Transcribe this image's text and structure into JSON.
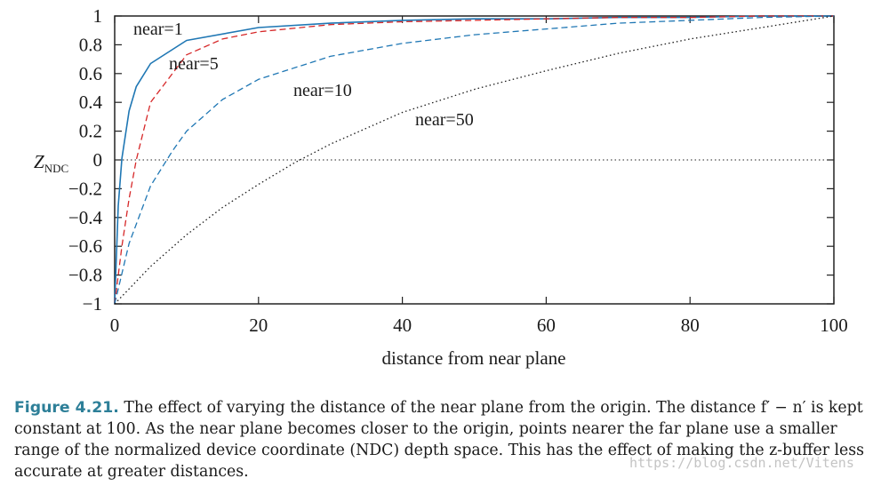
{
  "chart_data": {
    "type": "line",
    "title": "",
    "xlabel": "distance from near plane",
    "ylabel_main": "Z",
    "ylabel_sub": "NDC",
    "xlim": [
      0,
      100
    ],
    "ylim": [
      -1,
      1
    ],
    "x_ticks": [
      "0",
      "20",
      "40",
      "60",
      "80",
      "100"
    ],
    "y_ticks": [
      "1",
      "0.8",
      "0.6",
      "0.4",
      "0.2",
      "0",
      "−0.2",
      "−0.4",
      "−0.6",
      "−0.8",
      "−1"
    ],
    "zero_line": true,
    "far_minus_near": 100,
    "series": [
      {
        "name": "near=1",
        "near": 1,
        "color": "#1f77b4",
        "style": "solid",
        "x": [
          0,
          0.5,
          1,
          2,
          3,
          5,
          10,
          20,
          30,
          40,
          50,
          60,
          70,
          80,
          90,
          100
        ],
        "y": [
          -1,
          -0.32,
          0.01,
          0.34,
          0.51,
          0.67,
          0.83,
          0.92,
          0.95,
          0.97,
          0.98,
          0.98,
          0.99,
          0.99,
          1.0,
          1.0
        ]
      },
      {
        "name": "near=5",
        "near": 5,
        "color": "#d62728",
        "style": "dashed",
        "x": [
          0,
          1,
          2,
          3,
          5,
          10,
          15,
          20,
          30,
          40,
          50,
          60,
          70,
          80,
          90,
          100
        ],
        "y": [
          -1,
          -0.6,
          -0.27,
          0.0,
          0.4,
          0.73,
          0.84,
          0.89,
          0.94,
          0.96,
          0.97,
          0.98,
          0.99,
          0.99,
          1.0,
          1.0
        ]
      },
      {
        "name": "near=10",
        "near": 10,
        "color": "#1f77b4",
        "style": "dashed",
        "x": [
          0,
          2,
          5,
          8,
          10,
          15,
          20,
          30,
          40,
          50,
          60,
          70,
          80,
          90,
          100
        ],
        "y": [
          -1,
          -0.58,
          -0.18,
          0.06,
          0.2,
          0.42,
          0.56,
          0.72,
          0.81,
          0.87,
          0.91,
          0.95,
          0.97,
          0.99,
          1.0
        ]
      },
      {
        "name": "near=50",
        "near": 50,
        "color": "#1a1a1a",
        "style": "dotted",
        "x": [
          0,
          5,
          10,
          15,
          20,
          25,
          30,
          40,
          50,
          60,
          70,
          80,
          90,
          100
        ],
        "y": [
          -1,
          -0.74,
          -0.52,
          -0.33,
          -0.17,
          -0.02,
          0.11,
          0.33,
          0.49,
          0.62,
          0.74,
          0.84,
          0.92,
          1.0
        ]
      }
    ]
  },
  "caption": {
    "figure_label": "Figure 4.21.",
    "text": "The effect of varying the distance of the near plane from the origin. The distance f′ − n′ is kept constant at 100. As the near plane becomes closer to the origin, points nearer the far plane use a smaller range of the normalized device coordinate (NDC) depth space. This has the effect of making the z-buffer less accurate at greater distances."
  },
  "watermark": "https://blog.csdn.net/Vitens"
}
